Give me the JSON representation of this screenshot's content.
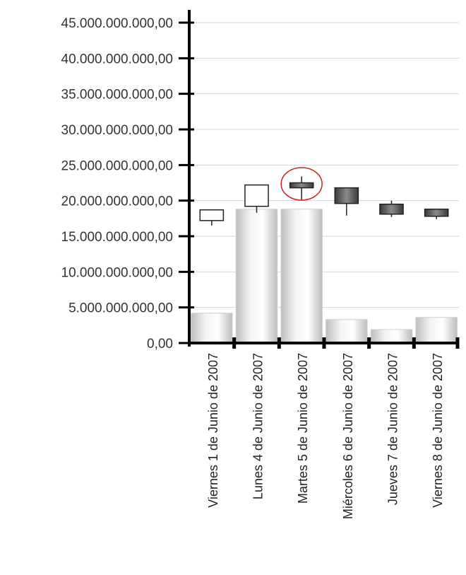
{
  "chart_data": {
    "type": "bar",
    "overlay_type": "candlestick",
    "title": "",
    "xlabel": "",
    "ylabel": "",
    "ylim": [
      0,
      45000000000
    ],
    "yticks": [
      {
        "value": 0,
        "label": "0,00"
      },
      {
        "value": 5000000000,
        "label": "5.000.000.000,00"
      },
      {
        "value": 10000000000,
        "label": "10.000.000.000,00"
      },
      {
        "value": 15000000000,
        "label": "15.000.000.000,00"
      },
      {
        "value": 20000000000,
        "label": "20.000.000.000,00"
      },
      {
        "value": 25000000000,
        "label": "25.000.000.000,00"
      },
      {
        "value": 30000000000,
        "label": "30.000.000.000,00"
      },
      {
        "value": 35000000000,
        "label": "35.000.000.000,00"
      },
      {
        "value": 40000000000,
        "label": "40.000.000.000,00"
      },
      {
        "value": 45000000000,
        "label": "45.000.000.000,00"
      }
    ],
    "grid": true,
    "categories": [
      "Viernes 1 de Junio de 2007",
      "Lunes 4 de Junio de 2007",
      "Martes 5 de Junio de 2007",
      "Miércoles 6 de Junio de 2007",
      "Jueves 7 de Junio de 2007",
      "Viernes 8 de Junio de 2007"
    ],
    "bar_values": [
      4200000000,
      18800000000,
      18800000000,
      3300000000,
      1900000000,
      3600000000
    ],
    "candles": [
      {
        "open": 17200000000,
        "high": 18700000000,
        "low": 16500000000,
        "close": 18700000000,
        "color": "#ffffff"
      },
      {
        "open": 19200000000,
        "high": 22200000000,
        "low": 18300000000,
        "close": 22200000000,
        "color": "#ffffff"
      },
      {
        "open": 22500000000,
        "high": 23400000000,
        "low": 20100000000,
        "close": 21800000000,
        "color": "#444444"
      },
      {
        "open": 21800000000,
        "high": 21800000000,
        "low": 17900000000,
        "close": 19600000000,
        "color": "#555555"
      },
      {
        "open": 19500000000,
        "high": 20000000000,
        "low": 17700000000,
        "close": 18100000000,
        "color": "#555555"
      },
      {
        "open": 18800000000,
        "high": 18800000000,
        "low": 17400000000,
        "close": 17800000000,
        "color": "#666666"
      }
    ],
    "highlight_category_index": 2,
    "highlight_color": "#cc2222"
  }
}
